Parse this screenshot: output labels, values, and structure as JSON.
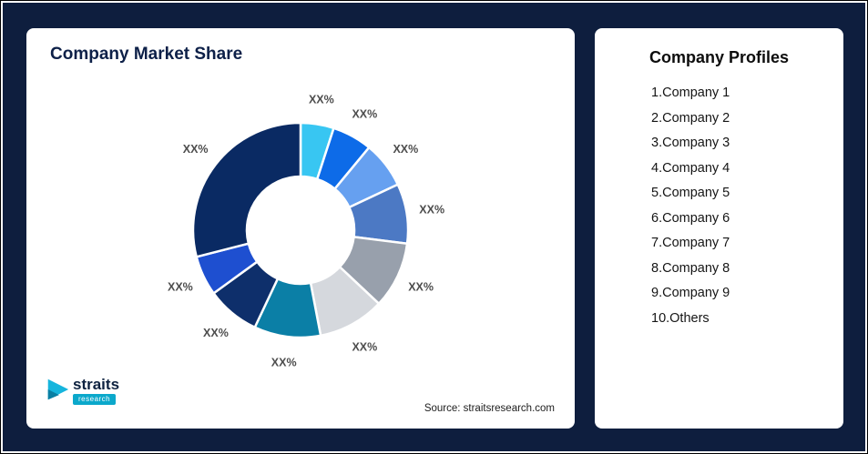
{
  "page": {
    "background_color": "#0e1e3e"
  },
  "left_card": {
    "title": "Company Market Share",
    "source": "Source: straitsresearch.com",
    "logo": {
      "name": "straits",
      "sub": "research"
    }
  },
  "profiles": {
    "title": "Company Profiles",
    "items": [
      "1.Company 1",
      "2.Company 2",
      "3.Company 3",
      "4.Company 4",
      "5.Company 5",
      "6.Company 6",
      "7.Company 7",
      "8.Company 8",
      "9.Company 9",
      "10.Others"
    ]
  },
  "chart_data": {
    "type": "pie",
    "donut": true,
    "title": "Company Market Share",
    "legend": "none",
    "inner_radius_ratio": 0.5,
    "note": "All slice data labels display the placeholder text XX%; values below are estimated from arc angles",
    "segments": [
      {
        "name": "Company 1",
        "value": 5,
        "label": "XX%",
        "color": "#38c6f2"
      },
      {
        "name": "Company 2",
        "value": 6,
        "label": "XX%",
        "color": "#0d6be8"
      },
      {
        "name": "Company 3",
        "value": 7,
        "label": "XX%",
        "color": "#66a0f0"
      },
      {
        "name": "Company 4",
        "value": 9,
        "label": "XX%",
        "color": "#4c79c4"
      },
      {
        "name": "Company 5",
        "value": 10,
        "label": "XX%",
        "color": "#98a0ac"
      },
      {
        "name": "Company 6",
        "value": 10,
        "label": "XX%",
        "color": "#d5d8dd"
      },
      {
        "name": "Company 7",
        "value": 10,
        "label": "XX%",
        "color": "#0b7fa6"
      },
      {
        "name": "Company 8",
        "value": 8,
        "label": "XX%",
        "color": "#0e2f6b"
      },
      {
        "name": "Company 9",
        "value": 6,
        "label": "XX%",
        "color": "#1e4fd0"
      },
      {
        "name": "Others",
        "value": 29,
        "label": "XX%",
        "color": "#0a2a63"
      }
    ]
  }
}
